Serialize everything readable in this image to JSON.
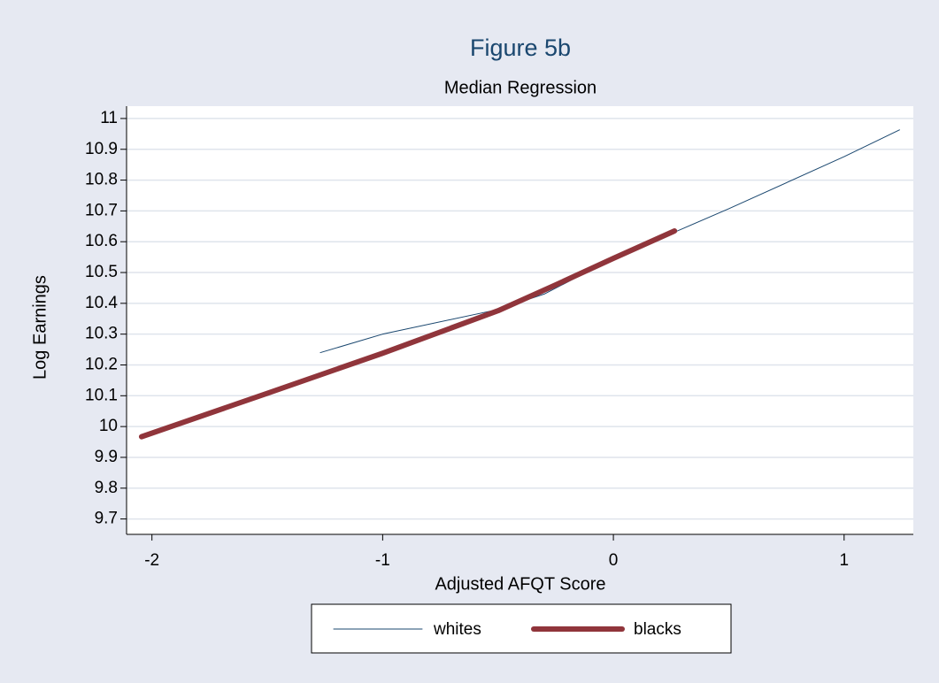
{
  "chart_data": {
    "type": "line",
    "title": "Figure 5b",
    "subtitle": "Median Regression",
    "x_label": "Adjusted AFQT Score",
    "y_label": "Log Earnings",
    "xlim": [
      -2.11,
      1.3
    ],
    "xticks": [
      -2,
      -1,
      0,
      1
    ],
    "ylim": [
      9.65,
      11.04
    ],
    "yticks": [
      9.7,
      9.8,
      9.9,
      10,
      10.1,
      10.2,
      10.3,
      10.4,
      10.5,
      10.6,
      10.7,
      10.8,
      10.9,
      11
    ],
    "grid": true,
    "legend": "bottom",
    "series": [
      {
        "name": "whites",
        "color": "#1a476f",
        "width": 1,
        "x": [
          -1.27,
          -1,
          -0.5,
          -0.3,
          0,
          0.2,
          0.5,
          1,
          1.24
        ],
        "values": [
          10.24,
          10.3,
          10.38,
          10.43,
          10.546,
          10.61,
          10.707,
          10.876,
          10.963
        ]
      },
      {
        "name": "blacks",
        "color": "#90353b",
        "width": 6,
        "x": [
          -2.045,
          -1.5,
          -1,
          -0.5,
          -0.25,
          0,
          0.265
        ],
        "values": [
          9.967,
          10.108,
          10.238,
          10.376,
          10.46,
          10.546,
          10.635
        ]
      }
    ]
  }
}
